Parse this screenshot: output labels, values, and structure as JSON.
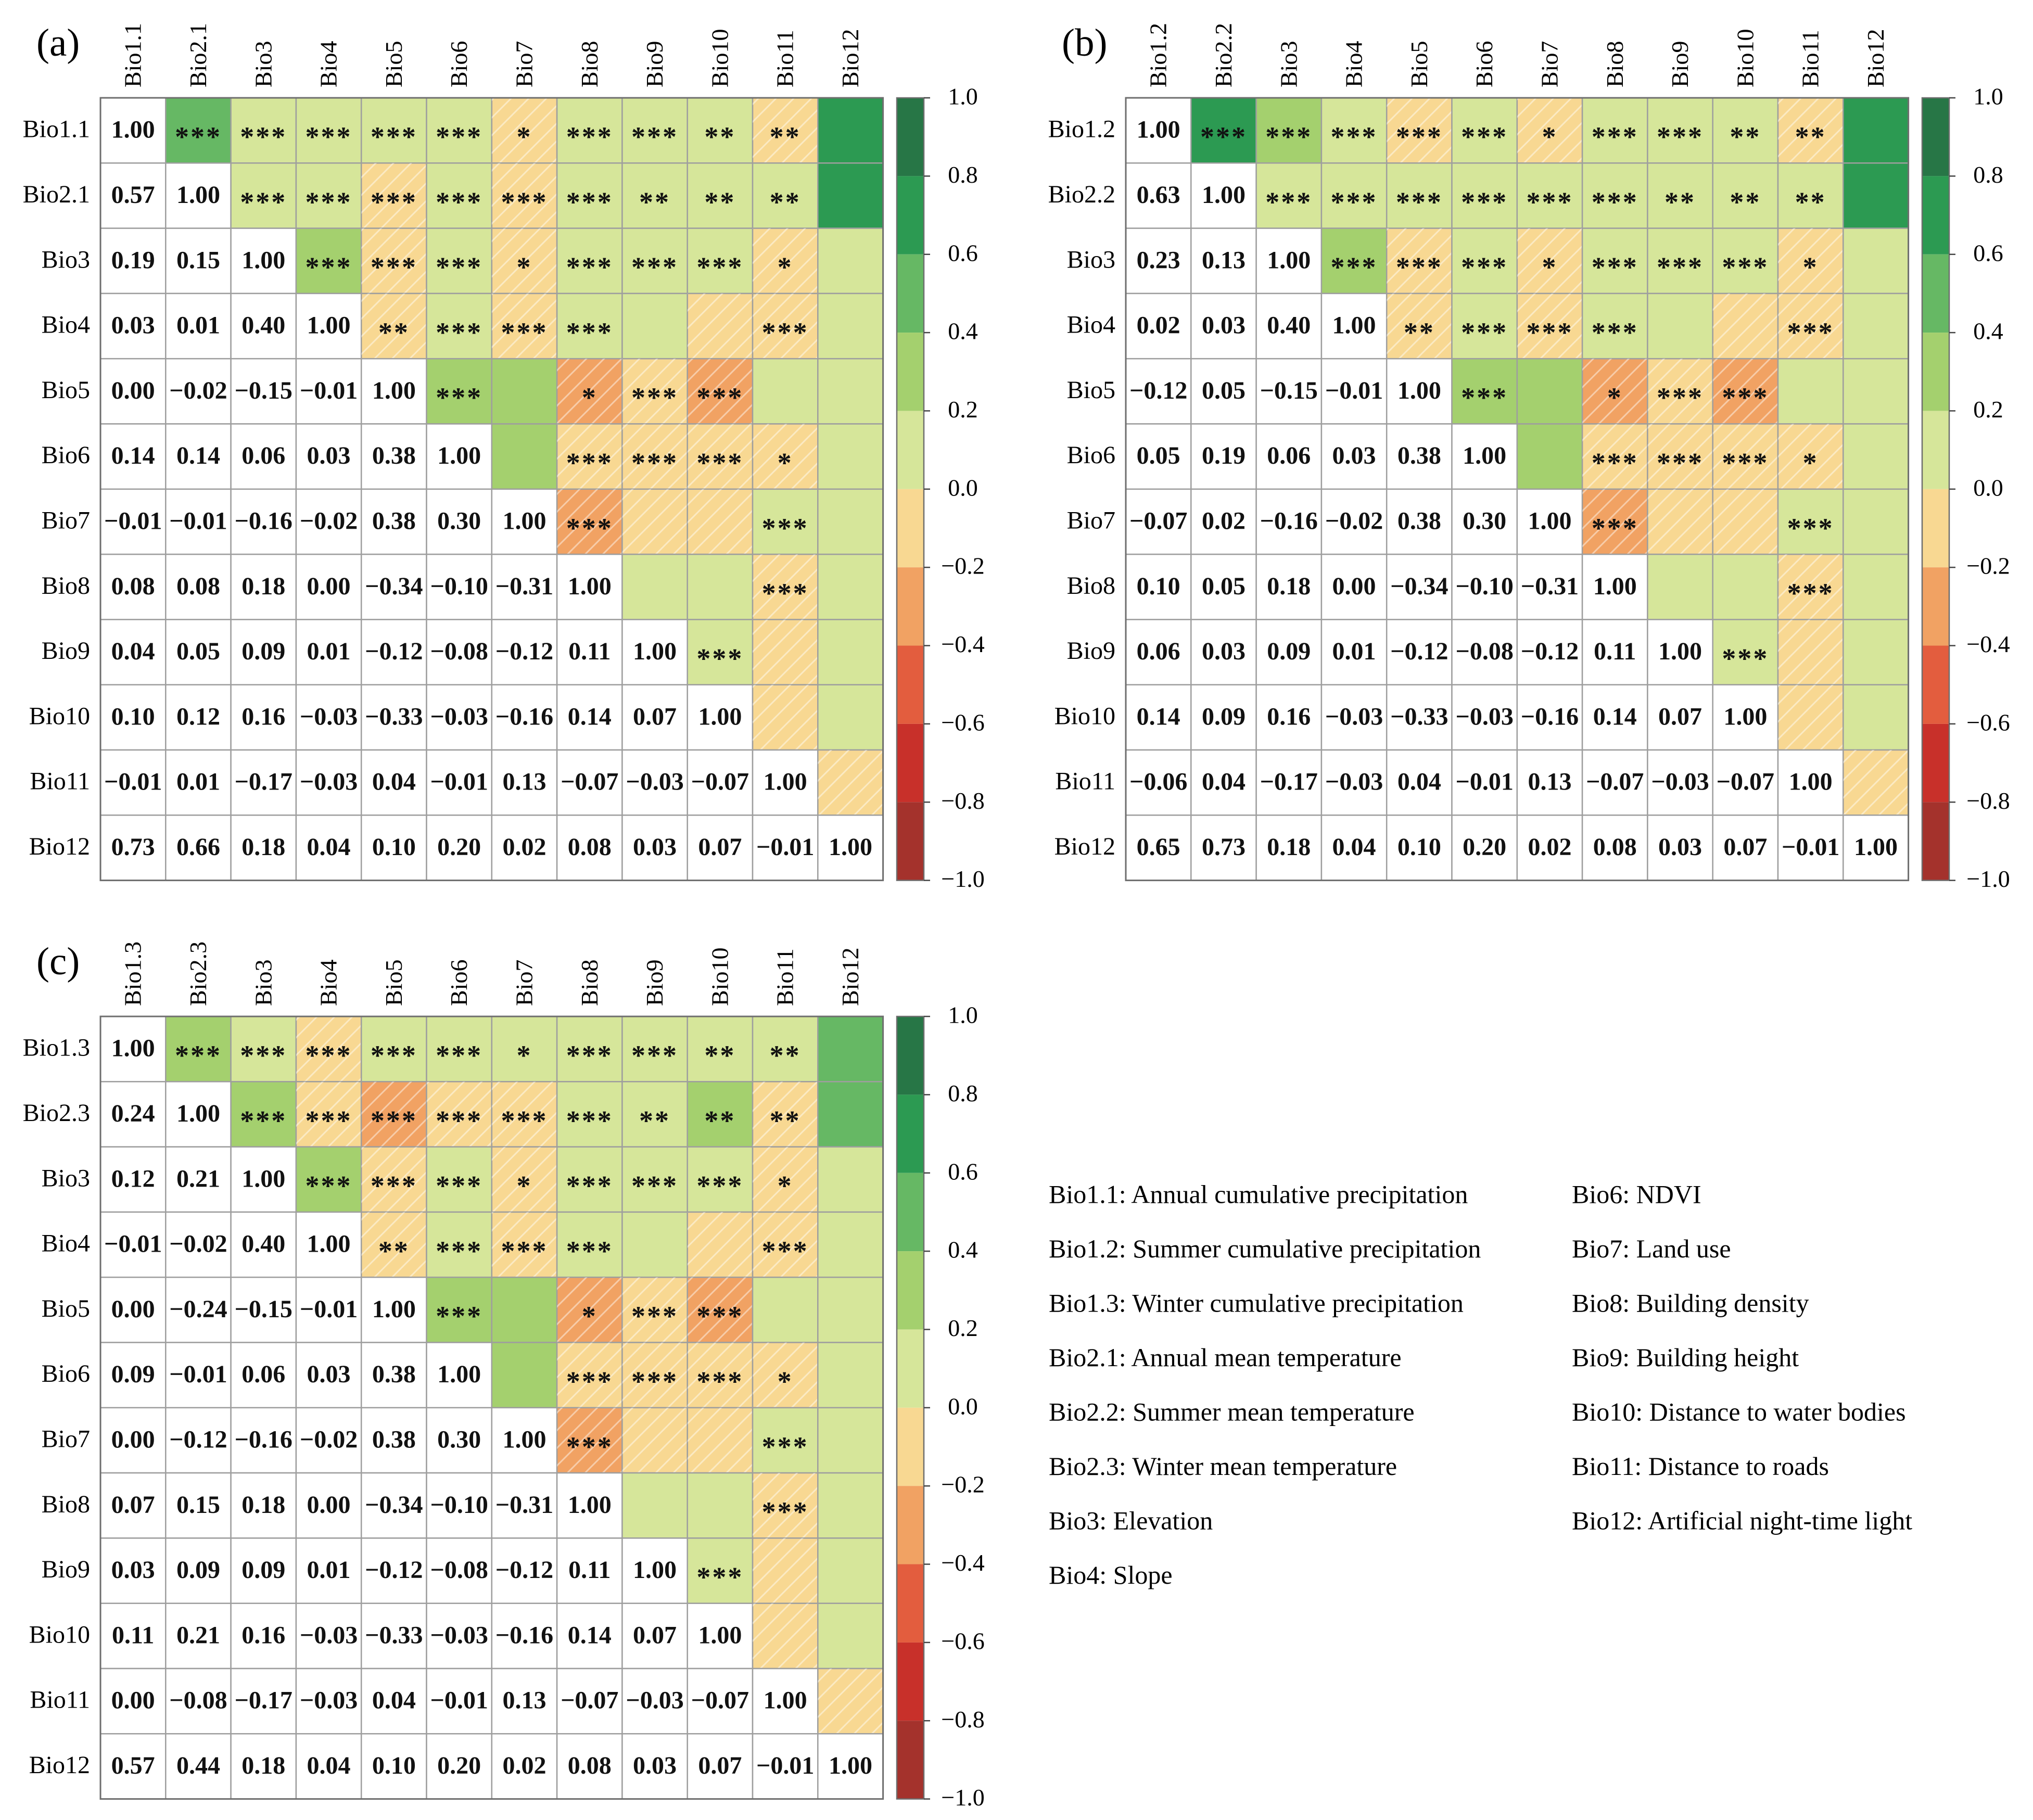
{
  "chart_data": [
    {
      "type": "heatmap",
      "panel": "(a)",
      "variables": [
        "Bio1.1",
        "Bio2.1",
        "Bio3",
        "Bio4",
        "Bio5",
        "Bio6",
        "Bio7",
        "Bio8",
        "Bio9",
        "Bio10",
        "Bio11",
        "Bio12"
      ],
      "lower_values": [
        [
          "1.00"
        ],
        [
          "0.57",
          "1.00"
        ],
        [
          "0.19",
          "0.15",
          "1.00"
        ],
        [
          "0.03",
          "0.01",
          "0.40",
          "1.00"
        ],
        [
          "0.00",
          "−0.02",
          "−0.15",
          "−0.01",
          "1.00"
        ],
        [
          "0.14",
          "0.14",
          "0.06",
          "0.03",
          "0.38",
          "1.00"
        ],
        [
          "−0.01",
          "−0.01",
          "−0.16",
          "−0.02",
          "0.38",
          "0.30",
          "1.00"
        ],
        [
          "0.08",
          "0.08",
          "0.18",
          "0.00",
          "−0.34",
          "−0.10",
          "−0.31",
          "1.00"
        ],
        [
          "0.04",
          "0.05",
          "0.09",
          "0.01",
          "−0.12",
          "−0.08",
          "−0.12",
          "0.11",
          "1.00"
        ],
        [
          "0.10",
          "0.12",
          "0.16",
          "−0.03",
          "−0.33",
          "−0.03",
          "−0.16",
          "0.14",
          "0.07",
          "1.00"
        ],
        [
          "−0.01",
          "0.01",
          "−0.17",
          "−0.03",
          "0.04",
          "−0.01",
          "0.13",
          "−0.07",
          "−0.03",
          "−0.07",
          "1.00"
        ],
        [
          "0.73",
          "0.66",
          "0.18",
          "0.04",
          "0.10",
          "0.20",
          "0.02",
          "0.08",
          "0.03",
          "0.07",
          "−0.01",
          "1.00"
        ]
      ],
      "upper_significance": [
        [
          "",
          "***",
          "***",
          "***",
          "***",
          "***",
          "*",
          "***",
          "***",
          "**",
          "**",
          ""
        ],
        [
          "",
          "",
          "***",
          "***",
          "***",
          "***",
          "***",
          "***",
          "**",
          "**",
          "**",
          ""
        ],
        [
          "",
          "",
          "",
          "***",
          "***",
          "***",
          "*",
          "***",
          "***",
          "***",
          "*",
          ""
        ],
        [
          "",
          "",
          "",
          "",
          "**",
          "***",
          "***",
          "***",
          "",
          "",
          "***",
          ""
        ],
        [
          "",
          "",
          "",
          "",
          "",
          "***",
          "",
          "*",
          "***",
          "***",
          "",
          ""
        ],
        [
          "",
          "",
          "",
          "",
          "",
          "",
          "",
          "***",
          "***",
          "***",
          "*",
          ""
        ],
        [
          "",
          "",
          "",
          "",
          "",
          "",
          "",
          "***",
          "",
          "",
          "***",
          ""
        ],
        [
          "",
          "",
          "",
          "",
          "",
          "",
          "",
          "",
          "",
          "",
          "***",
          ""
        ],
        [
          "",
          "",
          "",
          "",
          "",
          "",
          "",
          "",
          "",
          "***",
          "",
          ""
        ],
        [
          "",
          "",
          "",
          "",
          "",
          "",
          "",
          "",
          "",
          "",
          "",
          ""
        ],
        [
          "",
          "",
          "",
          "",
          "",
          "",
          "",
          "",
          "",
          "",
          "",
          ""
        ],
        [
          "",
          "",
          "",
          "",
          "",
          "",
          "",
          "",
          "",
          "",
          "",
          ""
        ]
      ],
      "colorbar": {
        "min": -1,
        "max": 1,
        "ticks": [
          "1.0",
          "0.8",
          "0.6",
          "0.4",
          "0.2",
          "0.0",
          "−0.2",
          "−0.4",
          "−0.6",
          "−0.8",
          "−1.0"
        ]
      }
    },
    {
      "type": "heatmap",
      "panel": "(b)",
      "variables": [
        "Bio1.2",
        "Bio2.2",
        "Bio3",
        "Bio4",
        "Bio5",
        "Bio6",
        "Bio7",
        "Bio8",
        "Bio9",
        "Bio10",
        "Bio11",
        "Bio12"
      ],
      "lower_values": [
        [
          "1.00"
        ],
        [
          "0.63",
          "1.00"
        ],
        [
          "0.23",
          "0.13",
          "1.00"
        ],
        [
          "0.02",
          "0.03",
          "0.40",
          "1.00"
        ],
        [
          "−0.12",
          "0.05",
          "−0.15",
          "−0.01",
          "1.00"
        ],
        [
          "0.05",
          "0.19",
          "0.06",
          "0.03",
          "0.38",
          "1.00"
        ],
        [
          "−0.07",
          "0.02",
          "−0.16",
          "−0.02",
          "0.38",
          "0.30",
          "1.00"
        ],
        [
          "0.10",
          "0.05",
          "0.18",
          "0.00",
          "−0.34",
          "−0.10",
          "−0.31",
          "1.00"
        ],
        [
          "0.06",
          "0.03",
          "0.09",
          "0.01",
          "−0.12",
          "−0.08",
          "−0.12",
          "0.11",
          "1.00"
        ],
        [
          "0.14",
          "0.09",
          "0.16",
          "−0.03",
          "−0.33",
          "−0.03",
          "−0.16",
          "0.14",
          "0.07",
          "1.00"
        ],
        [
          "−0.06",
          "0.04",
          "−0.17",
          "−0.03",
          "0.04",
          "−0.01",
          "0.13",
          "−0.07",
          "−0.03",
          "−0.07",
          "1.00"
        ],
        [
          "0.65",
          "0.73",
          "0.18",
          "0.04",
          "0.10",
          "0.20",
          "0.02",
          "0.08",
          "0.03",
          "0.07",
          "−0.01",
          "1.00"
        ]
      ],
      "upper_significance": [
        [
          "",
          "***",
          "***",
          "***",
          "***",
          "***",
          "*",
          "***",
          "***",
          "**",
          "**",
          ""
        ],
        [
          "",
          "",
          "***",
          "***",
          "***",
          "***",
          "***",
          "***",
          "**",
          "**",
          "**",
          ""
        ],
        [
          "",
          "",
          "",
          "***",
          "***",
          "***",
          "*",
          "***",
          "***",
          "***",
          "*",
          ""
        ],
        [
          "",
          "",
          "",
          "",
          "**",
          "***",
          "***",
          "***",
          "",
          "",
          "***",
          ""
        ],
        [
          "",
          "",
          "",
          "",
          "",
          "***",
          "",
          "*",
          "***",
          "***",
          "",
          ""
        ],
        [
          "",
          "",
          "",
          "",
          "",
          "",
          "",
          "***",
          "***",
          "***",
          "*",
          ""
        ],
        [
          "",
          "",
          "",
          "",
          "",
          "",
          "",
          "***",
          "",
          "",
          "***",
          ""
        ],
        [
          "",
          "",
          "",
          "",
          "",
          "",
          "",
          "",
          "",
          "",
          "***",
          ""
        ],
        [
          "",
          "",
          "",
          "",
          "",
          "",
          "",
          "",
          "",
          "***",
          "",
          ""
        ],
        [
          "",
          "",
          "",
          "",
          "",
          "",
          "",
          "",
          "",
          "",
          "",
          ""
        ],
        [
          "",
          "",
          "",
          "",
          "",
          "",
          "",
          "",
          "",
          "",
          "",
          ""
        ],
        [
          "",
          "",
          "",
          "",
          "",
          "",
          "",
          "",
          "",
          "",
          "",
          ""
        ]
      ],
      "colorbar": {
        "min": -1,
        "max": 1,
        "ticks": [
          "1.0",
          "0.8",
          "0.6",
          "0.4",
          "0.2",
          "0.0",
          "−0.2",
          "−0.4",
          "−0.6",
          "−0.8",
          "−1.0"
        ]
      }
    },
    {
      "type": "heatmap",
      "panel": "(c)",
      "variables": [
        "Bio1.3",
        "Bio2.3",
        "Bio3",
        "Bio4",
        "Bio5",
        "Bio6",
        "Bio7",
        "Bio8",
        "Bio9",
        "Bio10",
        "Bio11",
        "Bio12"
      ],
      "lower_values": [
        [
          "1.00"
        ],
        [
          "0.24",
          "1.00"
        ],
        [
          "0.12",
          "0.21",
          "1.00"
        ],
        [
          "−0.01",
          "−0.02",
          "0.40",
          "1.00"
        ],
        [
          "0.00",
          "−0.24",
          "−0.15",
          "−0.01",
          "1.00"
        ],
        [
          "0.09",
          "−0.01",
          "0.06",
          "0.03",
          "0.38",
          "1.00"
        ],
        [
          "0.00",
          "−0.12",
          "−0.16",
          "−0.02",
          "0.38",
          "0.30",
          "1.00"
        ],
        [
          "0.07",
          "0.15",
          "0.18",
          "0.00",
          "−0.34",
          "−0.10",
          "−0.31",
          "1.00"
        ],
        [
          "0.03",
          "0.09",
          "0.09",
          "0.01",
          "−0.12",
          "−0.08",
          "−0.12",
          "0.11",
          "1.00"
        ],
        [
          "0.11",
          "0.21",
          "0.16",
          "−0.03",
          "−0.33",
          "−0.03",
          "−0.16",
          "0.14",
          "0.07",
          "1.00"
        ],
        [
          "0.00",
          "−0.08",
          "−0.17",
          "−0.03",
          "0.04",
          "−0.01",
          "0.13",
          "−0.07",
          "−0.03",
          "−0.07",
          "1.00"
        ],
        [
          "0.57",
          "0.44",
          "0.18",
          "0.04",
          "0.10",
          "0.20",
          "0.02",
          "0.08",
          "0.03",
          "0.07",
          "−0.01",
          "1.00"
        ]
      ],
      "upper_significance": [
        [
          "",
          "***",
          "***",
          "***",
          "***",
          "***",
          "*",
          "***",
          "***",
          "**",
          "**",
          ""
        ],
        [
          "",
          "",
          "***",
          "***",
          "***",
          "***",
          "***",
          "***",
          "**",
          "**",
          "**",
          ""
        ],
        [
          "",
          "",
          "",
          "***",
          "***",
          "***",
          "*",
          "***",
          "***",
          "***",
          "*",
          ""
        ],
        [
          "",
          "",
          "",
          "",
          "**",
          "***",
          "***",
          "***",
          "",
          "",
          "***",
          ""
        ],
        [
          "",
          "",
          "",
          "",
          "",
          "***",
          "",
          "*",
          "***",
          "***",
          "",
          ""
        ],
        [
          "",
          "",
          "",
          "",
          "",
          "",
          "",
          "***",
          "***",
          "***",
          "*",
          ""
        ],
        [
          "",
          "",
          "",
          "",
          "",
          "",
          "",
          "***",
          "",
          "",
          "***",
          ""
        ],
        [
          "",
          "",
          "",
          "",
          "",
          "",
          "",
          "",
          "",
          "",
          "***",
          ""
        ],
        [
          "",
          "",
          "",
          "",
          "",
          "",
          "",
          "",
          "",
          "***",
          "",
          ""
        ],
        [
          "",
          "",
          "",
          "",
          "",
          "",
          "",
          "",
          "",
          "",
          "",
          ""
        ],
        [
          "",
          "",
          "",
          "",
          "",
          "",
          "",
          "",
          "",
          "",
          "",
          ""
        ],
        [
          "",
          "",
          "",
          "",
          "",
          "",
          "",
          "",
          "",
          "",
          "",
          ""
        ]
      ],
      "colorbar": {
        "min": -1,
        "max": 1,
        "ticks": [
          "1.0",
          "0.8",
          "0.6",
          "0.4",
          "0.2",
          "0.0",
          "−0.2",
          "−0.4",
          "−0.6",
          "−0.8",
          "−1.0"
        ]
      }
    }
  ],
  "colors": {
    "scale": [
      "#a4322c",
      "#c8302a",
      "#e35d3e",
      "#f1a263",
      "#f8d892",
      "#d6e69a",
      "#a4d06e",
      "#66b864",
      "#2c9a52",
      "#277646"
    ],
    "stroke": "#9e9e9e",
    "frame": "#6e6e6e",
    "text": "#111111",
    "hatch": "#ffffff"
  },
  "legend": {
    "left": [
      "Bio1.1: Annual cumulative precipitation",
      "Bio1.2: Summer cumulative precipitation",
      "Bio1.3: Winter cumulative precipitation",
      "Bio2.1: Annual mean temperature",
      "Bio2.2: Summer mean temperature",
      "Bio2.3: Winter mean temperature",
      "Bio3: Elevation",
      "Bio4: Slope"
    ],
    "right": [
      "Bio6: NDVI",
      "Bio7: Land use",
      "Bio8: Building density",
      "Bio9: Building height",
      "Bio10: Distance to water bodies",
      "Bio11: Distance to roads",
      "Bio12: Artificial night-time light"
    ]
  }
}
